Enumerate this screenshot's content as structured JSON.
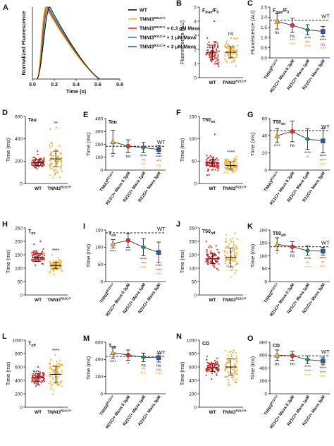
{
  "colors": {
    "wt": "#111111",
    "tnni3": "#f6b830",
    "mava03": "#e03328",
    "mava1": "#23925a",
    "mava3": "#2a59ae",
    "wt_dot": "#d43030",
    "tnni3_dot": "#f4b237",
    "red_sig": "#e03328",
    "green_sig": "#23925a",
    "yellow_sig": "#e6a817",
    "black_sig": "#111111"
  },
  "panelA": {
    "letter": "A",
    "ylabel": "Normalized Fluorescence",
    "xlabel": "Time (s)",
    "xticks": [
      "0.0",
      "0.2",
      "0.4",
      "0.6",
      "0.8"
    ],
    "legend": [
      {
        "pre": "WT",
        "sup": "",
        "post": "",
        "color": "wt"
      },
      {
        "pre": "TNNI3",
        "sup": "R21C/+",
        "post": "",
        "color": "tnni3"
      },
      {
        "pre": "TNNI3",
        "sup": "R21C/+",
        "post": " + 0.3 μM Mava",
        "color": "mava03"
      },
      {
        "pre": "TNNI3",
        "sup": "R21C/+",
        "post": " + 1 μM Mava",
        "color": "mava1"
      },
      {
        "pre": "TNNI3",
        "sup": "R21C/+",
        "post": " + 3 μM Mava",
        "color": "mava3"
      }
    ]
  },
  "scatter_labels": {
    "wt": "WT",
    "tnni3_pre": "TNNI3",
    "tnni3_sup": "R21C/+"
  },
  "line_labels": {
    "c1_pre": "TNNI3",
    "c1_sup": "R21C/+",
    "c2": "R21C/+ Mava 0.3μM",
    "c3": "R21C/+ Mava 1μM",
    "c4": "R21C/+ Mava 3μM",
    "wt": "WT"
  },
  "chart_data": [
    {
      "id": "A",
      "type": "line",
      "xlabel": "Time (s)",
      "ylabel": "Normalized Fluorescence",
      "xlim": [
        0,
        0.8
      ],
      "ylim": [
        0,
        1
      ],
      "series": [
        {
          "name": "WT",
          "peak_time": 0.16
        },
        {
          "name": "TNNI3 R21C/+",
          "peak_time": 0.12
        },
        {
          "name": "TNNI3 R21C/+ + 0.3 μM Mava",
          "peak_time": 0.13
        },
        {
          "name": "TNNI3 R21C/+ + 1 μM Mava",
          "peak_time": 0.14
        },
        {
          "name": "TNNI3 R21C/+ + 3 μM Mava",
          "peak_time": 0.145
        }
      ]
    },
    {
      "id": "B",
      "type": "scatter",
      "title_pre": "F",
      "title_sub": "max",
      "title_mid": "/F",
      "title_sub2": "0",
      "ylabel": "Fluorescence (AU)",
      "ylim": [
        0,
        5
      ],
      "yticks": [
        "0",
        "1",
        "2",
        "3",
        "4",
        "5"
      ],
      "groups": [
        {
          "mean": 1.8,
          "sd": 0.5,
          "top": 4.0
        },
        {
          "mean": 1.8,
          "sd": 0.4,
          "top": 2.8
        }
      ],
      "sig": "ns",
      "sig_color": "black_sig"
    },
    {
      "id": "C",
      "type": "line",
      "title_pre": "F",
      "title_sub": "max",
      "title_mid": "/F",
      "title_sub2": "0",
      "ylabel": "Fluorescence (AU)",
      "ylim": [
        0,
        2.5
      ],
      "yticks": [
        "0.0",
        "0.5",
        "1.0",
        "1.5",
        "2.0",
        "2.5"
      ],
      "wt_ref": 1.85,
      "means": [
        1.8,
        1.6,
        1.38,
        1.3
      ],
      "sd": [
        0.38,
        0.35,
        0.25,
        0.25
      ],
      "sig": [
        [
          "ns"
        ],
        [
          "ns",
          "***",
          "****"
        ],
        [
          "****",
          "***",
          "****"
        ],
        [
          "****",
          "ns",
          "****"
        ]
      ]
    },
    {
      "id": "D",
      "type": "scatter",
      "title": "Tau",
      "ylabel": "Time (ms)",
      "ylim": [
        0,
        600
      ],
      "yticks": [
        "0",
        "200",
        "400",
        "600"
      ],
      "groups": [
        {
          "mean": 185,
          "sd": 25,
          "top": 290
        },
        {
          "mean": 220,
          "sd": 70,
          "top": 500
        }
      ],
      "sig": "**",
      "sig_color": "black_sig"
    },
    {
      "id": "E",
      "type": "line",
      "title": "Tau",
      "ylabel": "Time (ms)",
      "ylim": [
        0,
        400
      ],
      "yticks": [
        "0",
        "100",
        "200",
        "300",
        "400"
      ],
      "wt_ref": 185,
      "means": [
        220,
        185,
        175,
        160
      ],
      "sd": [
        90,
        50,
        40,
        30
      ],
      "sig": [
        [
          "**"
        ],
        [
          "ns"
        ],
        [
          "****",
          "**",
          "***"
        ],
        [
          "****",
          "***",
          "ns"
        ]
      ]
    },
    {
      "id": "F",
      "type": "scatter",
      "title_pre": "T50",
      "title_sub": "on",
      "ylabel": "Time (ms)",
      "ylim": [
        0,
        150
      ],
      "yticks": [
        "0",
        "50",
        "100",
        "150"
      ],
      "groups": [
        {
          "mean": 46,
          "sd": 8,
          "top": 110
        },
        {
          "mean": 40,
          "sd": 8,
          "top": 60
        }
      ],
      "sig": "****",
      "sig_color": "black_sig"
    },
    {
      "id": "G",
      "type": "line",
      "title_pre": "T50",
      "title_sub": "on",
      "ylabel": "Time (ms)",
      "ylim": [
        0,
        60
      ],
      "yticks": [
        "0",
        "20",
        "40",
        "60"
      ],
      "wt_ref": 46,
      "means": [
        40,
        45,
        36,
        34
      ],
      "sd": [
        8,
        12,
        12,
        14
      ],
      "sig": [
        [
          "****"
        ],
        [
          "ns"
        ],
        [
          "****",
          "**"
        ],
        [
          "****",
          "****",
          "****"
        ]
      ]
    },
    {
      "id": "H",
      "type": "scatter",
      "title_pre": "T",
      "title_sub": "on",
      "ylabel": "Time (ms)",
      "ylim": [
        0,
        250
      ],
      "yticks": [
        "0",
        "50",
        "100",
        "150",
        "200",
        "250"
      ],
      "groups": [
        {
          "mean": 140,
          "sd": 15,
          "top": 200
        },
        {
          "mean": 110,
          "sd": 12,
          "top": 150
        }
      ],
      "sig": "****",
      "sig_color": "black_sig"
    },
    {
      "id": "I",
      "type": "line",
      "title_pre": "T",
      "title_sub": "on",
      "ylabel": "Time (ms)",
      "ylim": [
        0,
        150
      ],
      "yticks": [
        "0",
        "50",
        "100",
        "150"
      ],
      "wt_ref": 142,
      "means": [
        110,
        120,
        100,
        85
      ],
      "sd": [
        12,
        20,
        25,
        30
      ],
      "sig": [
        [
          "****"
        ],
        [
          "***"
        ],
        [
          "****",
          "***",
          "****"
        ],
        [
          "****",
          "****",
          "****"
        ]
      ]
    },
    {
      "id": "J",
      "type": "scatter",
      "title_pre": "T50",
      "title_sub": "off",
      "ylabel": "Time (ms)",
      "ylim": [
        0,
        250
      ],
      "yticks": [
        "0",
        "50",
        "100",
        "150",
        "200",
        "250"
      ],
      "groups": [
        {
          "mean": 135,
          "sd": 18,
          "top": 200
        },
        {
          "mean": 140,
          "sd": 35,
          "top": 230
        }
      ],
      "sig": "",
      "sig_color": "black_sig"
    },
    {
      "id": "K",
      "type": "line",
      "title_pre": "T50",
      "title_sub": "off",
      "ylabel": "Time (ms)",
      "ylim": [
        0,
        200
      ],
      "yticks": [
        "0",
        "50",
        "100",
        "150",
        "200"
      ],
      "wt_ref": 135,
      "means": [
        145,
        135,
        120,
        118
      ],
      "sd": [
        25,
        20,
        18,
        15
      ],
      "sig": [
        [
          "*"
        ],
        [
          "ns"
        ],
        [
          "****",
          "**",
          "****"
        ],
        [
          "****",
          "**",
          "****"
        ]
      ]
    },
    {
      "id": "L",
      "type": "scatter",
      "title_pre": "T",
      "title_sub": "off",
      "ylabel": "Time (ms)",
      "ylim": [
        0,
        1000
      ],
      "yticks": [
        "0",
        "200",
        "400",
        "600",
        "800",
        "1000"
      ],
      "groups": [
        {
          "mean": 440,
          "sd": 60,
          "top": 600
        },
        {
          "mean": 490,
          "sd": 120,
          "top": 780
        }
      ],
      "sig": "****",
      "sig_color": "black_sig"
    },
    {
      "id": "M",
      "type": "line",
      "title_pre": "T",
      "title_sub": "off",
      "ylabel": "Time (ms)",
      "ylim": [
        0,
        600
      ],
      "yticks": [
        "0",
        "200",
        "400",
        "600"
      ],
      "wt_ref": 435,
      "means": [
        480,
        450,
        425,
        420
      ],
      "sd": [
        70,
        60,
        50,
        50
      ],
      "sig": [
        [
          "****"
        ],
        [
          "*"
        ],
        [
          "ns",
          "**",
          "****"
        ],
        [
          "ns",
          "ns",
          "****"
        ]
      ]
    },
    {
      "id": "N",
      "type": "scatter",
      "title": "CD",
      "ylabel": "Time (ms)",
      "ylim": [
        0,
        1000
      ],
      "yticks": [
        "0",
        "200",
        "400",
        "600",
        "800",
        "1000"
      ],
      "groups": [
        {
          "mean": 590,
          "sd": 60,
          "top": 760
        },
        {
          "mean": 600,
          "sd": 120,
          "top": 850
        }
      ],
      "sig": "",
      "sig_color": "black_sig"
    },
    {
      "id": "O",
      "type": "line",
      "title": "CD",
      "ylabel": "Time (ms)",
      "ylim": [
        0,
        800
      ],
      "yticks": [
        "0",
        "200",
        "400",
        "600",
        "800"
      ],
      "wt_ref": 590,
      "means": [
        600,
        590,
        530,
        510
      ],
      "sd": [
        80,
        70,
        60,
        60
      ],
      "sig": [
        [
          "ns"
        ],
        [
          "ns"
        ],
        [
          "****",
          "****",
          "****"
        ],
        [
          "****",
          "****",
          "****"
        ]
      ]
    }
  ]
}
